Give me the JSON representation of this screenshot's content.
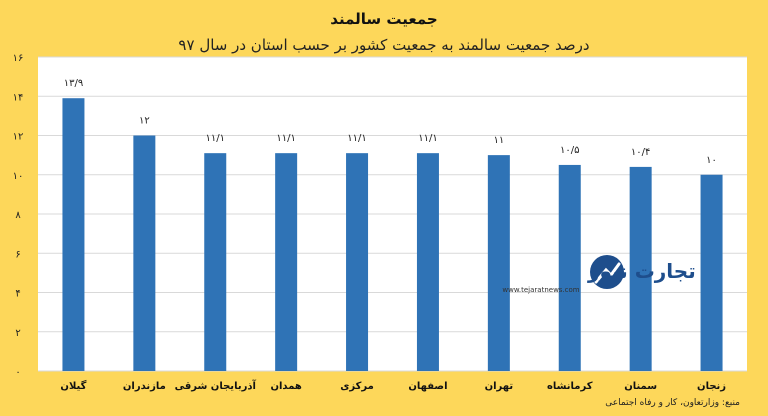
{
  "title": "جمعیت سالمند",
  "subtitle": "درصد جمعیت سالمند به جمعیت کشور بر حسب استان در سال ۹۷",
  "source": "منبع: وزارتعاون، کار و رفاه اجتماعی",
  "logo": {
    "name": "تجارت نیوز",
    "url": "www.tejaratnews.com"
  },
  "colors": {
    "background": "#fdd75a",
    "plot_background": "#ffffff",
    "bar": "#2f73b6",
    "grid": "#d9d9d9"
  },
  "chart_data": {
    "type": "bar",
    "categories": [
      "گیلان",
      "مازندران",
      "آذربایجان شرقی",
      "همدان",
      "مرکزی",
      "اصفهان",
      "تهران",
      "کرمانشاه",
      "سمنان",
      "زنجان"
    ],
    "values": [
      13.9,
      12,
      11.1,
      11.1,
      11.1,
      11.1,
      11,
      10.5,
      10.4,
      10
    ],
    "data_labels": [
      "۱۳/۹",
      "۱۲",
      "۱۱/۱",
      "۱۱/۱",
      "۱۱/۱",
      "۱۱/۱",
      "۱۱",
      "۱۰/۵",
      "۱۰/۴",
      "۱۰"
    ],
    "yticks": [
      0,
      2,
      4,
      6,
      8,
      10,
      12,
      14,
      16
    ],
    "ytick_labels": [
      "۰",
      "۲",
      "۴",
      "۶",
      "۸",
      "۱۰",
      "۱۲",
      "۱۴",
      "۱۶"
    ],
    "ylim": [
      0,
      16
    ],
    "grid": true,
    "xlabel": "",
    "ylabel": ""
  }
}
